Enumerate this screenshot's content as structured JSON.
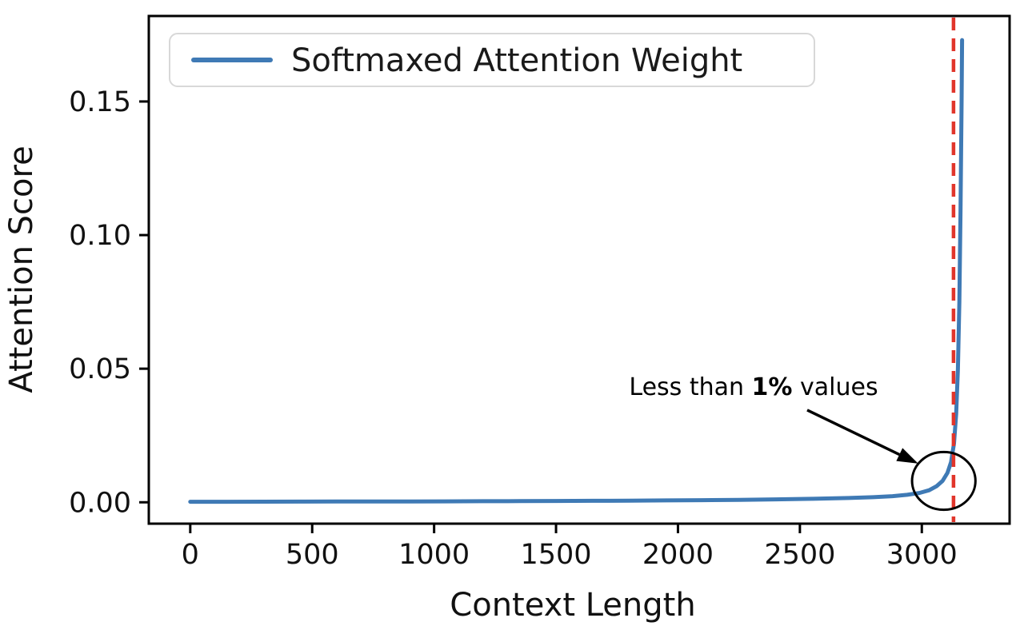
{
  "figure": {
    "background": "#ffffff"
  },
  "chart_data": {
    "type": "line",
    "title": "",
    "xlabel": "Context Length",
    "ylabel": "Attention Score",
    "xlim": [
      -170,
      3360
    ],
    "ylim": [
      -0.008,
      0.182
    ],
    "grid": false,
    "x_ticks": [
      0,
      500,
      1000,
      1500,
      2000,
      2500,
      3000
    ],
    "x_tick_labels": [
      "0",
      "500",
      "1000",
      "1500",
      "2000",
      "2500",
      "3000"
    ],
    "y_ticks": [
      0.0,
      0.05,
      0.1,
      0.15
    ],
    "y_tick_labels": [
      "0.00",
      "0.05",
      "0.10",
      "0.15"
    ],
    "legend": {
      "position": "upper-left",
      "entries": [
        {
          "label": "Softmaxed Attention Weight",
          "color": "#3f7ab5"
        }
      ]
    },
    "series": [
      {
        "name": "Softmaxed Attention Weight",
        "color": "#3f7ab5",
        "x": [
          0,
          150,
          300,
          450,
          600,
          750,
          900,
          1050,
          1200,
          1350,
          1500,
          1650,
          1800,
          1950,
          2100,
          2250,
          2400,
          2550,
          2700,
          2800,
          2880,
          2940,
          2990,
          3030,
          3060,
          3085,
          3105,
          3120,
          3132,
          3141,
          3148,
          3154,
          3159,
          3163,
          3165
        ],
        "y": [
          0.0002,
          0.0002,
          0.00022,
          0.00025,
          0.00028,
          0.0003,
          0.00033,
          0.00036,
          0.0004,
          0.00045,
          0.0005,
          0.00055,
          0.0006,
          0.0007,
          0.0008,
          0.0009,
          0.0011,
          0.0013,
          0.0016,
          0.0019,
          0.0023,
          0.0028,
          0.0035,
          0.0045,
          0.006,
          0.008,
          0.011,
          0.015,
          0.022,
          0.033,
          0.05,
          0.075,
          0.11,
          0.15,
          0.173
        ]
      }
    ],
    "vline": {
      "x": 3130,
      "color": "#e1352b",
      "style": "dashed"
    },
    "annotation": {
      "prefix": "Less than ",
      "bold": "1%",
      "suffix": " values",
      "arrow_start": [
        2530,
        0.0345
      ],
      "arrow_end": [
        2985,
        0.0145
      ]
    },
    "ellipse": {
      "center": [
        3090,
        0.008
      ],
      "rx": 130,
      "ry": 0.0108
    }
  }
}
